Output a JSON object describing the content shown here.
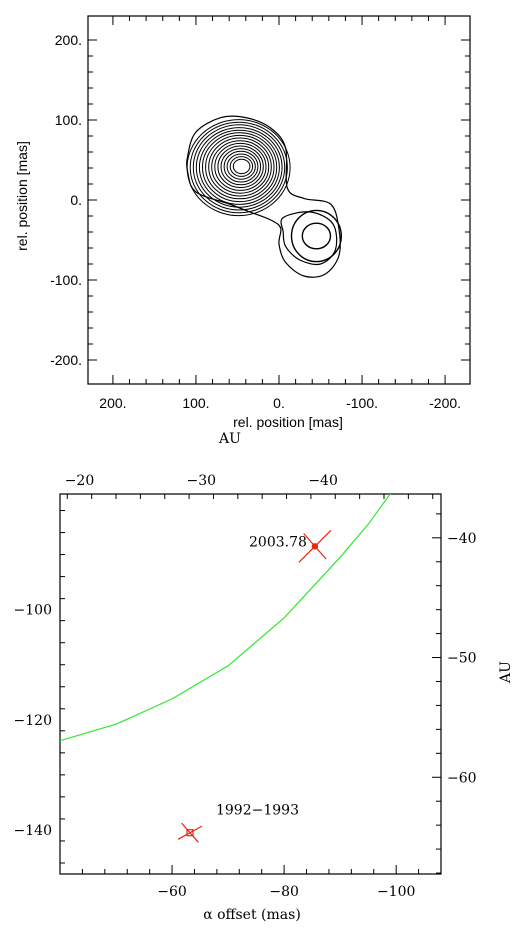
{
  "chart_data": [
    {
      "type": "contour",
      "title": "",
      "xlabel": "rel. position [mas]",
      "ylabel": "rel. position [mas]",
      "xlim": [
        230,
        -230
      ],
      "ylim": [
        -230,
        230
      ],
      "x_ticks": [
        200,
        100,
        0,
        -100,
        -200
      ],
      "x_tick_labels": [
        "200.",
        "100.",
        "0.",
        "-100.",
        "-200."
      ],
      "y_ticks": [
        200,
        100,
        0,
        -100,
        -200
      ],
      "y_tick_labels": [
        "200.",
        "100.",
        "0.",
        "-100.",
        "-200."
      ],
      "components": [
        {
          "center": [
            45,
            42
          ],
          "rx_outer": 62,
          "ry_outer": 60,
          "rx_inner": 10,
          "ry_inner": 9,
          "levels": 16
        },
        {
          "center": [
            -45,
            -45
          ],
          "rx_outer": 30,
          "ry_outer": 32,
          "rx_inner": 17,
          "ry_inner": 16,
          "levels": 2
        }
      ],
      "outer_envelope": [
        [
          110,
          55
        ],
        [
          100,
          85
        ],
        [
          70,
          103
        ],
        [
          40,
          103
        ],
        [
          10,
          90
        ],
        [
          -8,
          65
        ],
        [
          -10,
          15
        ],
        [
          -30,
          2
        ],
        [
          -62,
          -5
        ],
        [
          -72,
          -35
        ],
        [
          -72,
          -70
        ],
        [
          -55,
          -93
        ],
        [
          -30,
          -95
        ],
        [
          -8,
          -78
        ],
        [
          0,
          -55
        ],
        [
          -2,
          -35
        ],
        [
          10,
          -25
        ],
        [
          35,
          -15
        ],
        [
          60,
          -5
        ],
        [
          100,
          10
        ],
        [
          110,
          35
        ]
      ],
      "secondary_envelope": [
        [
          -5,
          -22
        ],
        [
          -38,
          -15
        ],
        [
          -65,
          -30
        ],
        [
          -68,
          -62
        ],
        [
          -50,
          -80
        ],
        [
          -25,
          -75
        ],
        [
          -8,
          -58
        ],
        [
          -5,
          -40
        ]
      ],
      "grid": false
    },
    {
      "type": "scatter",
      "title": "",
      "xlabel": "α offset (mas)",
      "ylabel": "",
      "y2label": "AU",
      "top_axis_label": "AU",
      "xlim": [
        -40,
        -108
      ],
      "ylim": [
        -148,
        -79
      ],
      "x_ticks": [
        -60,
        -80,
        -100
      ],
      "x_tick_labels": [
        "−60",
        "−80",
        "−100"
      ],
      "y_ticks": [
        -100,
        -120,
        -140
      ],
      "y_tick_labels": [
        "−100",
        "−120",
        "−140"
      ],
      "top_ticks": [
        -20,
        -30,
        -40
      ],
      "top_tick_labels": [
        "−20",
        "−30",
        "−40"
      ],
      "right_ticks": [
        -40,
        -50,
        -60
      ],
      "right_tick_labels": [
        "−40",
        "−50",
        "−60"
      ],
      "au_per_mas": 0.46,
      "points": [
        {
          "label": "2003.78",
          "x": -85.5,
          "y": -88.5,
          "color": "#e8270e",
          "marker": "filled-circle"
        },
        {
          "label": "1992−1993",
          "x": -63.2,
          "y": -140.5,
          "color": "#e8270e",
          "marker": "open-square"
        }
      ],
      "orbit": {
        "color": "#2ee82e",
        "x": [
          -40,
          -50,
          -60,
          -70,
          -80,
          -90,
          -95,
          -100,
          -103
        ],
        "y": [
          -123.8,
          -120.8,
          -116.2,
          -110.2,
          -101.5,
          -90.5,
          -84.5,
          -77.5,
          -73.0
        ]
      },
      "grid": false
    }
  ]
}
